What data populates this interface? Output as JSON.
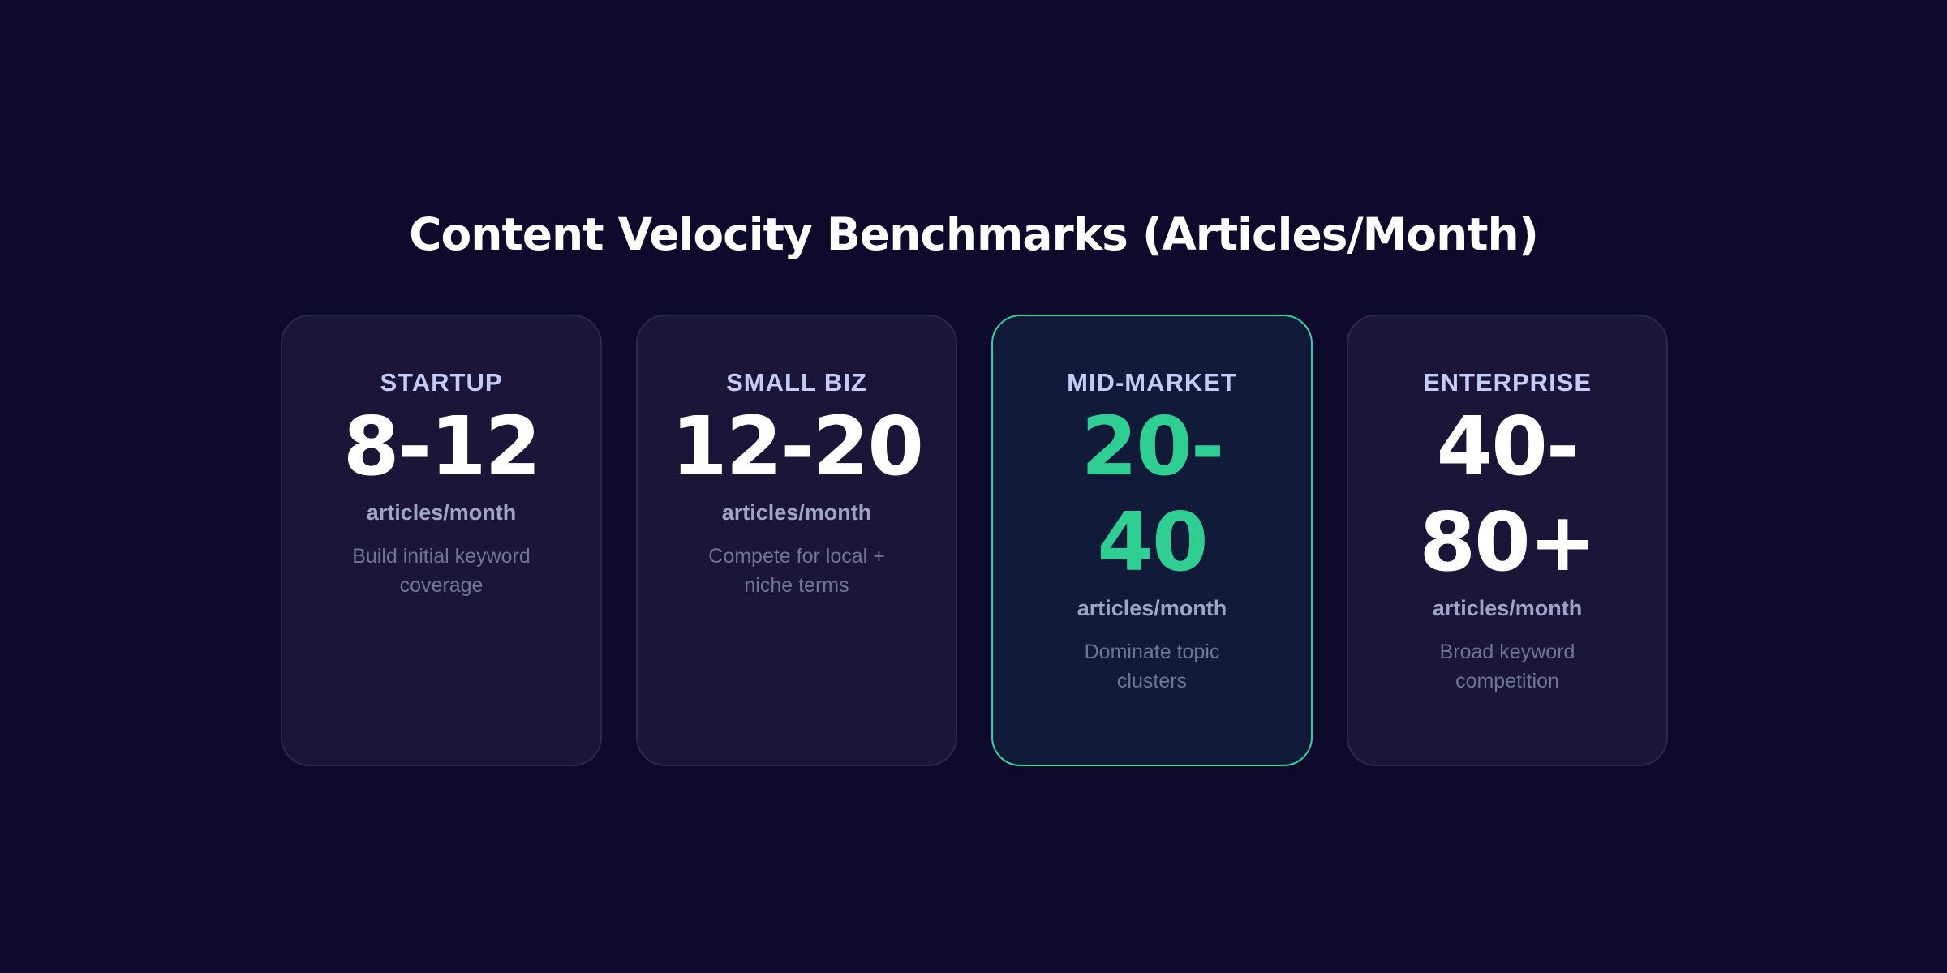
{
  "title": "Content Velocity Benchmarks (Articles/Month)",
  "accent_color": "#2fcf94",
  "cards": [
    {
      "tier": "STARTUP",
      "range": "8-12",
      "unit": "articles/month",
      "description": "Build initial keyword coverage",
      "highlighted": false
    },
    {
      "tier": "SMALL BIZ",
      "range": "12-20",
      "unit": "articles/month",
      "description": "Compete for local + niche terms",
      "highlighted": false
    },
    {
      "tier": "MID-MARKET",
      "range": "20-40",
      "unit": "articles/month",
      "description": "Dominate topic clusters",
      "highlighted": true
    },
    {
      "tier": "ENTERPRISE",
      "range": "40-80+",
      "unit": "articles/month",
      "description": "Broad keyword competition",
      "highlighted": false
    }
  ]
}
